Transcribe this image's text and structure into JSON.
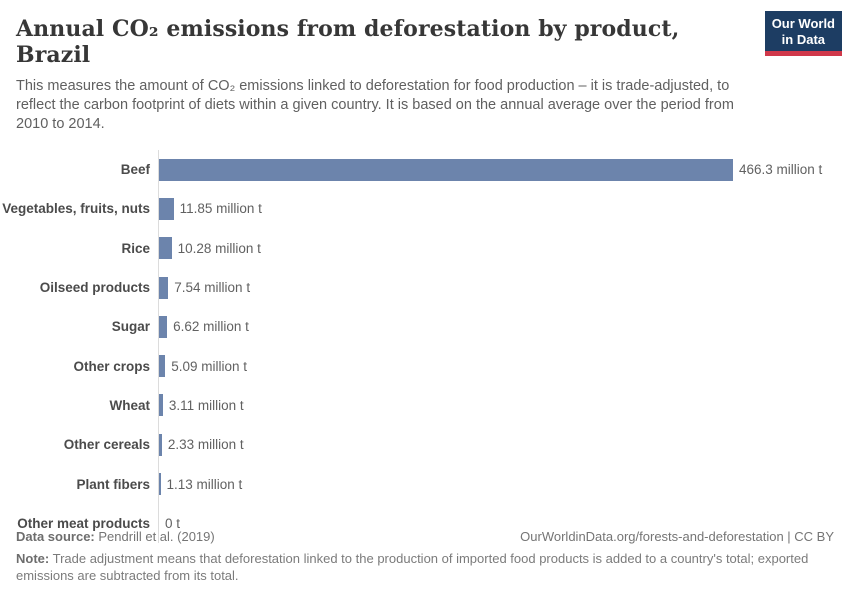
{
  "header": {
    "title": "Annual CO₂ emissions from deforestation by product, Brazil",
    "subtitle": "This measures the amount of CO₂ emissions linked to deforestation for food production – it is trade-adjusted, to reflect the carbon footprint of diets within a given country. It is based on the annual average over the period from 2010 to 2014.",
    "logo": {
      "line1": "Our World",
      "line2": "in Data"
    }
  },
  "chart_data": {
    "type": "bar",
    "orientation": "horizontal",
    "title": "Annual CO₂ emissions from deforestation by product, Brazil",
    "unit": "million t",
    "categories": [
      "Beef",
      "Vegetables, fruits, nuts",
      "Rice",
      "Oilseed products",
      "Sugar",
      "Other crops",
      "Wheat",
      "Other cereals",
      "Plant fibers",
      "Other meat products"
    ],
    "values": [
      466.3,
      11.85,
      10.28,
      7.54,
      6.62,
      5.09,
      3.11,
      2.33,
      1.13,
      0
    ],
    "value_labels": [
      "466.3 million t",
      "11.85 million t",
      "10.28 million t",
      "7.54 million t",
      "6.62 million t",
      "5.09 million t",
      "3.11 million t",
      "2.33 million t",
      "1.13 million t",
      "0 t"
    ],
    "xlim": [
      0,
      466.3
    ],
    "grid": false,
    "legend": false,
    "bar_color": "#6c84ac",
    "axis_line_color": "#dcdcdc"
  },
  "footer": {
    "source_label": "Data source:",
    "source_value": "Pendrill et al. (2019)",
    "link": "OurWorldinData.org/forests-and-deforestation | CC BY",
    "note_label": "Note:",
    "note_text": "Trade adjustment means that deforestation linked to the production of imported food products is added to a country's total; exported emissions are subtracted from its total."
  },
  "colors": {
    "bar": "#6c84ac",
    "axis_line": "#dcdcdc",
    "logo_background": "#1d3d63",
    "logo_accent": "#d0384a",
    "title_text": "#373737",
    "subtitle_text": "#606060"
  }
}
